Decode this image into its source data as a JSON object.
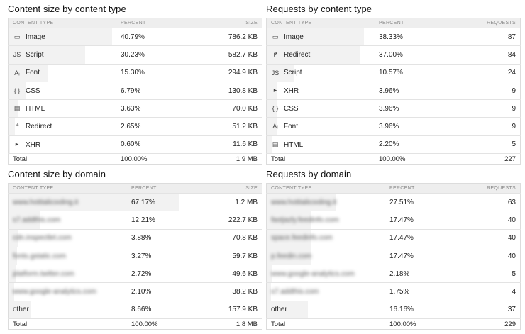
{
  "col_headers": {
    "content_type": "CONTENT TYPE",
    "percent": "PERCENT",
    "size": "SIZE",
    "requests": "REQUESTS"
  },
  "panels": [
    {
      "id": "content-size-by-type",
      "title": "Content size by content type",
      "value_header": "SIZE",
      "rows": [
        {
          "icon": "image-icon",
          "glyph": "▭",
          "label": "Image",
          "percent": "40.79%",
          "value": "786.2 KB",
          "share": 0.4079
        },
        {
          "icon": "script-icon",
          "glyph": "JS",
          "label": "Script",
          "percent": "30.23%",
          "value": "582.7 KB",
          "share": 0.3023
        },
        {
          "icon": "font-icon",
          "glyph": "Aᵢ",
          "label": "Font",
          "percent": "15.30%",
          "value": "294.9 KB",
          "share": 0.153
        },
        {
          "icon": "css-icon",
          "glyph": "{ }",
          "label": "CSS",
          "percent": "6.79%",
          "value": "130.8 KB",
          "share": 0.0679
        },
        {
          "icon": "html-icon",
          "glyph": "▤",
          "label": "HTML",
          "percent": "3.63%",
          "value": "70.0 KB",
          "share": 0.0363
        },
        {
          "icon": "redirect-icon",
          "glyph": "↱",
          "label": "Redirect",
          "percent": "2.65%",
          "value": "51.2 KB",
          "share": 0.0265
        },
        {
          "icon": "xhr-icon",
          "glyph": "▸",
          "label": "XHR",
          "percent": "0.60%",
          "value": "11.6 KB",
          "share": 0.006
        }
      ],
      "total": {
        "label": "Total",
        "percent": "100.00%",
        "value": "1.9 MB"
      }
    },
    {
      "id": "requests-by-type",
      "title": "Requests by content type",
      "value_header": "REQUESTS",
      "rows": [
        {
          "icon": "image-icon",
          "glyph": "▭",
          "label": "Image",
          "percent": "38.33%",
          "value": "87",
          "share": 0.3833
        },
        {
          "icon": "redirect-icon",
          "glyph": "↱",
          "label": "Redirect",
          "percent": "37.00%",
          "value": "84",
          "share": 0.37
        },
        {
          "icon": "script-icon",
          "glyph": "JS",
          "label": "Script",
          "percent": "10.57%",
          "value": "24",
          "share": 0.1057
        },
        {
          "icon": "xhr-icon",
          "glyph": "▸",
          "label": "XHR",
          "percent": "3.96%",
          "value": "9",
          "share": 0.0396
        },
        {
          "icon": "css-icon",
          "glyph": "{ }",
          "label": "CSS",
          "percent": "3.96%",
          "value": "9",
          "share": 0.0396
        },
        {
          "icon": "font-icon",
          "glyph": "Aᵢ",
          "label": "Font",
          "percent": "3.96%",
          "value": "9",
          "share": 0.0396
        },
        {
          "icon": "html-icon",
          "glyph": "▤",
          "label": "HTML",
          "percent": "2.20%",
          "value": "5",
          "share": 0.022
        }
      ],
      "total": {
        "label": "Total",
        "percent": "100.00%",
        "value": "227"
      }
    },
    {
      "id": "content-size-by-domain",
      "title": "Content size by domain",
      "value_header": "SIZE",
      "rows": [
        {
          "label": "www.hotitalicooling.it",
          "blurred": true,
          "percent": "67.17%",
          "value": "1.2 MB",
          "share": 0.6717
        },
        {
          "label": "s7.addthis.com",
          "blurred": true,
          "percent": "12.21%",
          "value": "222.7 KB",
          "share": 0.1221
        },
        {
          "label": "cdn.inspectlet.com",
          "blurred": true,
          "percent": "3.88%",
          "value": "70.8 KB",
          "share": 0.0388
        },
        {
          "label": "fonts.gstatic.com",
          "blurred": true,
          "percent": "3.27%",
          "value": "59.7 KB",
          "share": 0.0327
        },
        {
          "label": "platform.twitter.com",
          "blurred": true,
          "percent": "2.72%",
          "value": "49.6 KB",
          "share": 0.0272
        },
        {
          "label": "www.google-analytics.com",
          "blurred": true,
          "percent": "2.10%",
          "value": "38.2 KB",
          "share": 0.021
        },
        {
          "label": "other",
          "blurred": false,
          "percent": "8.66%",
          "value": "157.9 KB",
          "share": 0.0866
        }
      ],
      "total": {
        "label": "Total",
        "percent": "100.00%",
        "value": "1.8 MB"
      }
    },
    {
      "id": "requests-by-domain",
      "title": "Requests by domain",
      "value_header": "REQUESTS",
      "rows": [
        {
          "label": "www.hotitalicooling.it",
          "blurred": true,
          "percent": "27.51%",
          "value": "63",
          "share": 0.2751
        },
        {
          "label": "fastjazly.feedinfo.com",
          "blurred": true,
          "percent": "17.47%",
          "value": "40",
          "share": 0.1747
        },
        {
          "label": "space.feedinfo.com",
          "blurred": true,
          "percent": "17.47%",
          "value": "40",
          "share": 0.1747
        },
        {
          "label": "p.feedin.com",
          "blurred": true,
          "percent": "17.47%",
          "value": "40",
          "share": 0.1747
        },
        {
          "label": "www.google-analytics.com",
          "blurred": true,
          "percent": "2.18%",
          "value": "5",
          "share": 0.0218
        },
        {
          "label": "s7.addthis.com",
          "blurred": true,
          "percent": "1.75%",
          "value": "4",
          "share": 0.0175
        },
        {
          "label": "other",
          "blurred": false,
          "percent": "16.16%",
          "value": "37",
          "share": 0.1616
        }
      ],
      "total": {
        "label": "Total",
        "percent": "100.00%",
        "value": "229"
      }
    }
  ]
}
